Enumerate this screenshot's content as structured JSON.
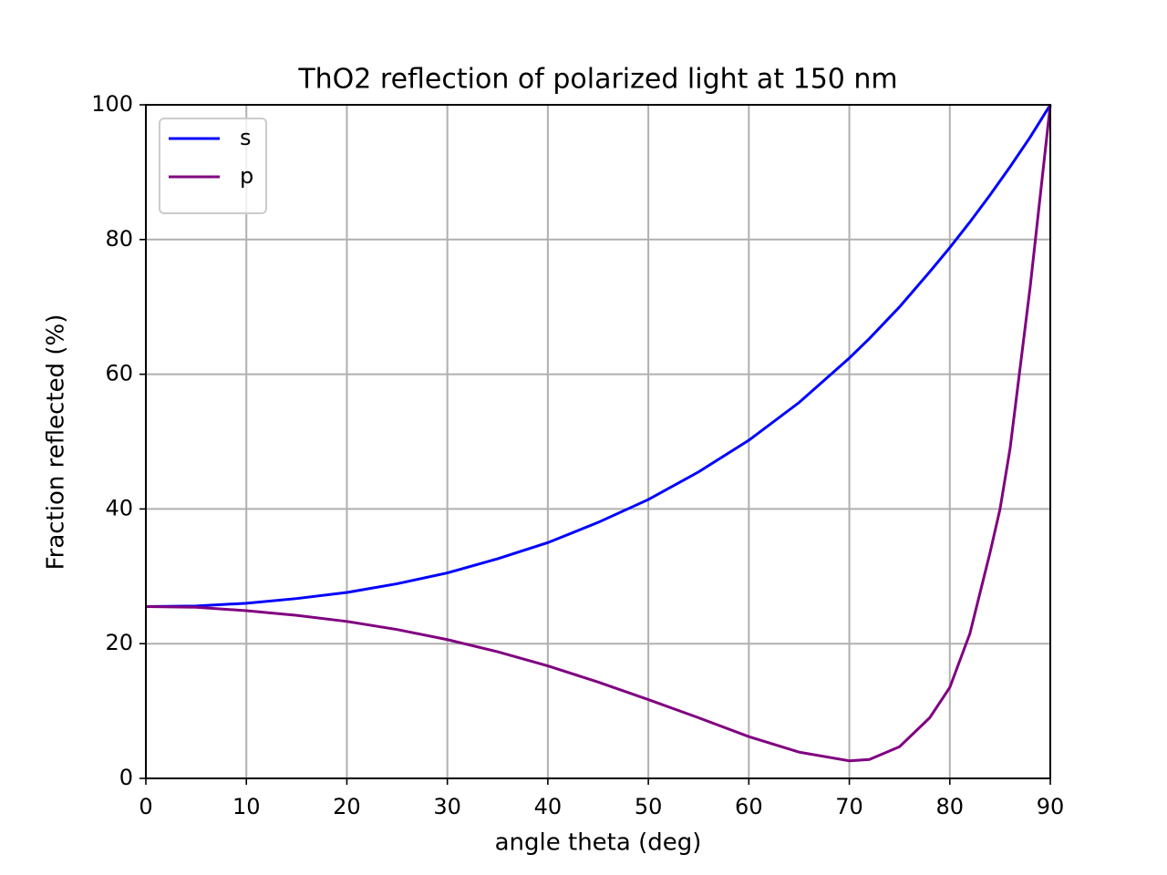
{
  "chart_data": {
    "type": "line",
    "title": "ThO2 reflection of polarized light at 150 nm",
    "xlabel": "angle theta (deg)",
    "ylabel": "Fraction reflected (%)",
    "x": [
      0,
      5,
      10,
      15,
      20,
      25,
      30,
      35,
      40,
      45,
      50,
      55,
      60,
      65,
      70,
      72,
      75,
      78,
      80,
      82,
      84,
      85,
      86,
      88,
      90
    ],
    "series": [
      {
        "name": "s",
        "color": "#0000ff",
        "values": [
          25.5,
          25.6,
          26.0,
          26.7,
          27.6,
          28.9,
          30.5,
          32.6,
          35.0,
          38.0,
          41.4,
          45.5,
          50.2,
          55.8,
          62.4,
          65.3,
          70.0,
          75.2,
          78.8,
          82.6,
          86.6,
          88.7,
          90.8,
          95.2,
          100
        ]
      },
      {
        "name": "p",
        "color": "#800080",
        "values": [
          25.5,
          25.4,
          24.9,
          24.2,
          23.3,
          22.1,
          20.6,
          18.8,
          16.7,
          14.3,
          11.7,
          9.0,
          6.2,
          3.9,
          2.6,
          2.8,
          4.7,
          9.0,
          13.5,
          21.5,
          33.5,
          40,
          49,
          73,
          100
        ]
      }
    ],
    "xlim": [
      0,
      90
    ],
    "xticks": [
      0,
      10,
      20,
      30,
      40,
      50,
      60,
      70,
      80,
      90
    ],
    "ylim": [
      0,
      100
    ],
    "yticks": [
      0,
      20,
      40,
      60,
      80,
      100
    ],
    "grid": true,
    "legend": "upper-left"
  }
}
